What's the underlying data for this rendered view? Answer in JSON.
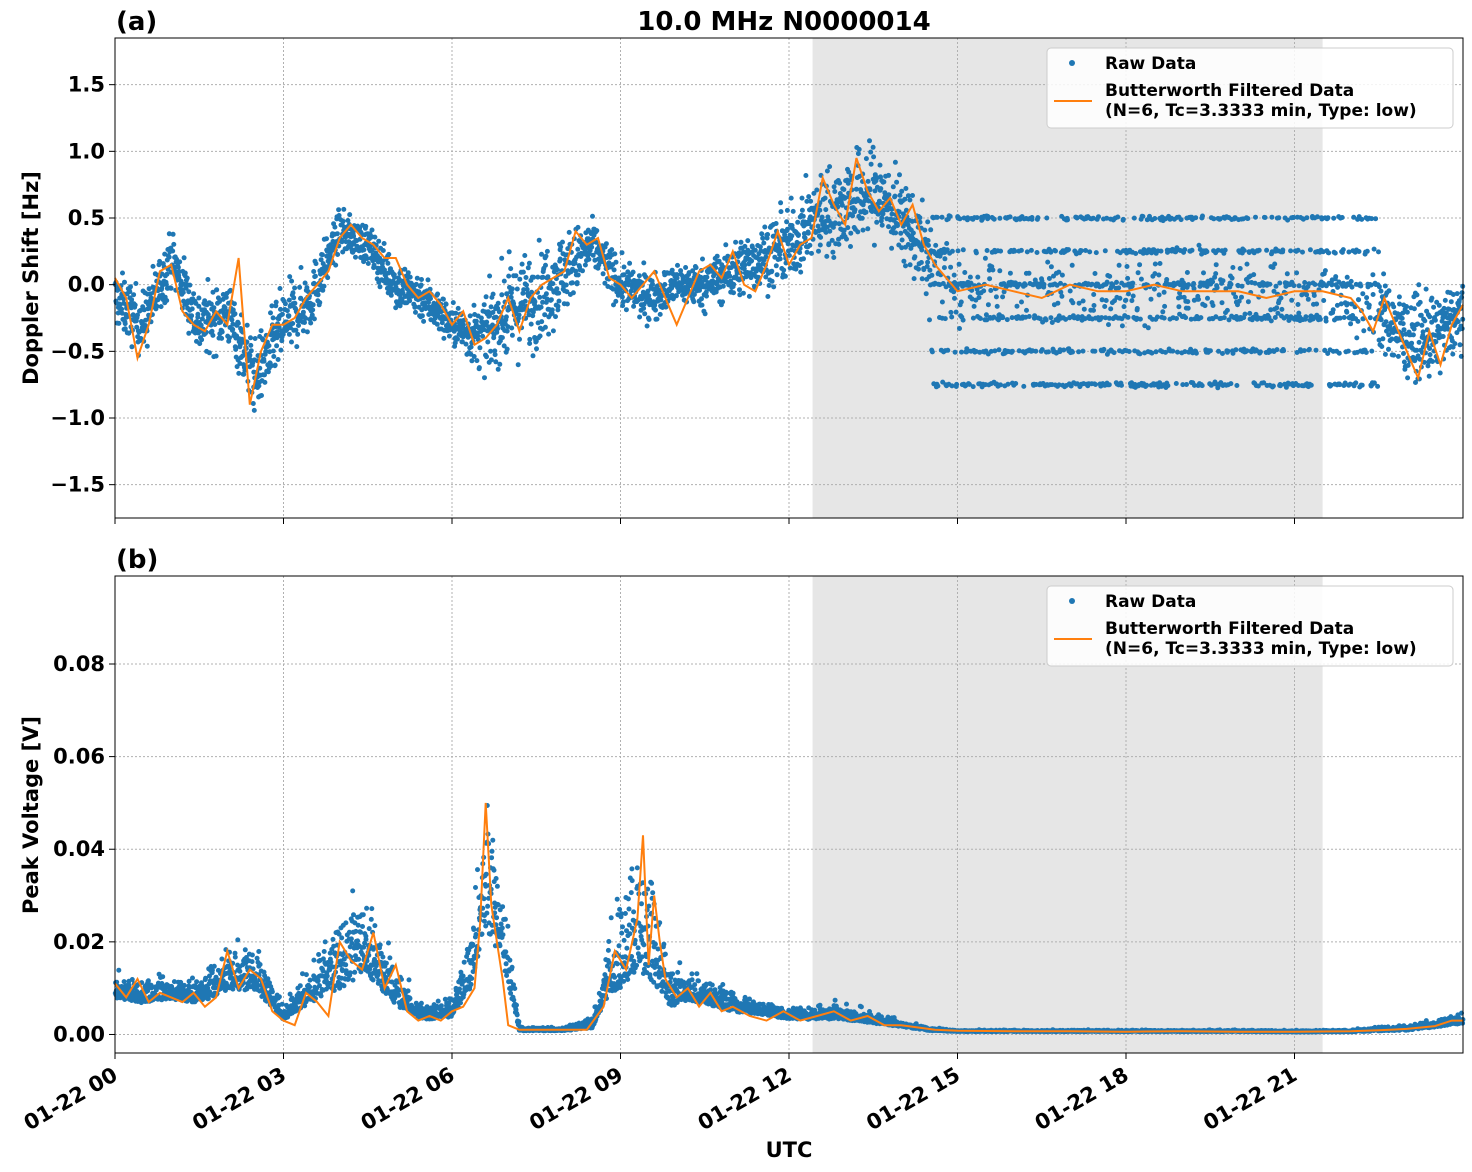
{
  "figure": {
    "title": "10.0 MHz N0000014",
    "xlabel": "UTC"
  },
  "colors": {
    "raw": "#1f77b4",
    "filtered": "#ff7f0e",
    "shade": "#e6e6e6",
    "grid": "#b0b0b0"
  },
  "chart_data": [
    {
      "type": "scatter",
      "panel_label": "(a)",
      "title": "10.0 MHz N0000014",
      "xlabel": "",
      "ylabel": "Doppler Shift [Hz]",
      "xlim_hours": [
        0,
        24
      ],
      "ylim": [
        -1.75,
        1.85
      ],
      "yticks": [
        -1.5,
        -1.0,
        -0.5,
        0.0,
        0.5,
        1.0,
        1.5
      ],
      "ytick_labels": [
        "−1.5",
        "−1.0",
        "−0.5",
        "0.0",
        "0.5",
        "1.0",
        "1.5"
      ],
      "grid": true,
      "legend_position": "top-right",
      "legend": [
        "Raw Data",
        "Butterworth Filtered Data",
        "(N=6, Tc=3.3333 min, Type: low)"
      ],
      "shaded_span_hours": [
        12.42,
        21.5
      ],
      "series": [
        {
          "name": "Raw Data",
          "kind": "points",
          "x_hours": [
            0.0,
            0.5,
            1.0,
            1.5,
            2.0,
            2.5,
            3.0,
            3.5,
            4.0,
            4.5,
            5.0,
            5.5,
            6.0,
            6.5,
            7.0,
            7.5,
            8.0,
            8.5,
            9.0,
            9.5,
            10.0,
            10.5,
            11.0,
            11.5,
            12.0,
            12.5,
            13.0,
            13.5,
            14.0,
            14.5,
            15.0,
            15.5,
            16.0,
            16.5,
            17.0,
            17.5,
            18.0,
            18.5,
            19.0,
            19.5,
            20.0,
            20.5,
            21.0,
            21.5,
            22.0,
            22.5,
            23.0,
            23.5,
            24.0
          ],
          "center": [
            -0.1,
            -0.3,
            0.2,
            -0.3,
            -0.2,
            -0.7,
            -0.3,
            -0.1,
            0.4,
            0.3,
            0.0,
            -0.1,
            -0.3,
            -0.4,
            -0.2,
            -0.1,
            0.1,
            0.3,
            0.0,
            -0.1,
            0.0,
            0.0,
            0.1,
            0.2,
            0.3,
            0.5,
            0.6,
            0.7,
            0.5,
            0.2,
            -0.05,
            -0.05,
            -0.05,
            -0.05,
            -0.05,
            -0.05,
            -0.05,
            -0.05,
            -0.05,
            -0.05,
            -0.05,
            -0.05,
            -0.05,
            -0.1,
            -0.15,
            -0.2,
            -0.4,
            -0.4,
            -0.2
          ],
          "spread": [
            0.35,
            0.4,
            0.35,
            0.4,
            0.4,
            0.45,
            0.45,
            0.4,
            0.25,
            0.25,
            0.3,
            0.3,
            0.25,
            0.4,
            0.6,
            0.6,
            0.5,
            0.3,
            0.3,
            0.3,
            0.25,
            0.3,
            0.35,
            0.4,
            0.45,
            0.5,
            0.6,
            0.6,
            0.5,
            0.5,
            0.4,
            0.4,
            0.4,
            0.4,
            0.4,
            0.4,
            0.4,
            0.4,
            0.4,
            0.4,
            0.4,
            0.4,
            0.4,
            0.45,
            0.45,
            0.45,
            0.5,
            0.5,
            0.4
          ],
          "bands": [
            -0.75,
            -0.5,
            -0.25,
            0.0,
            0.25,
            0.5
          ],
          "bands_span_hours": [
            14.5,
            22.5
          ]
        },
        {
          "name": "Butterworth Filtered Data",
          "kind": "line",
          "x_hours": [
            0.0,
            0.2,
            0.4,
            0.6,
            0.8,
            1.0,
            1.2,
            1.4,
            1.6,
            1.8,
            2.0,
            2.2,
            2.4,
            2.6,
            2.8,
            3.0,
            3.2,
            3.4,
            3.6,
            3.8,
            4.0,
            4.2,
            4.4,
            4.6,
            4.8,
            5.0,
            5.2,
            5.4,
            5.6,
            5.8,
            6.0,
            6.2,
            6.4,
            6.6,
            6.8,
            7.0,
            7.2,
            7.4,
            7.6,
            7.8,
            8.0,
            8.2,
            8.4,
            8.6,
            8.8,
            9.0,
            9.2,
            9.4,
            9.6,
            9.8,
            10.0,
            10.2,
            10.4,
            10.6,
            10.8,
            11.0,
            11.2,
            11.4,
            11.6,
            11.8,
            12.0,
            12.2,
            12.4,
            12.6,
            12.8,
            13.0,
            13.2,
            13.4,
            13.6,
            13.8,
            14.0,
            14.2,
            14.4,
            14.6,
            14.8,
            15.0,
            15.5,
            16.0,
            16.5,
            17.0,
            17.5,
            18.0,
            18.5,
            19.0,
            19.5,
            20.0,
            20.5,
            21.0,
            21.5,
            22.0,
            22.2,
            22.4,
            22.6,
            22.8,
            23.0,
            23.2,
            23.4,
            23.6,
            23.8,
            24.0
          ],
          "y": [
            0.05,
            -0.1,
            -0.55,
            -0.3,
            0.1,
            0.15,
            -0.2,
            -0.3,
            -0.35,
            -0.2,
            -0.3,
            0.2,
            -0.9,
            -0.5,
            -0.3,
            -0.3,
            -0.25,
            -0.1,
            0.0,
            0.1,
            0.35,
            0.45,
            0.35,
            0.3,
            0.2,
            0.2,
            0.0,
            -0.1,
            -0.05,
            -0.15,
            -0.3,
            -0.2,
            -0.45,
            -0.4,
            -0.3,
            -0.1,
            -0.35,
            -0.1,
            0.0,
            0.05,
            0.1,
            0.4,
            0.3,
            0.35,
            0.05,
            0.0,
            -0.1,
            0.0,
            0.1,
            -0.1,
            -0.3,
            -0.1,
            0.1,
            0.15,
            0.05,
            0.25,
            0.0,
            -0.05,
            0.15,
            0.4,
            0.15,
            0.3,
            0.35,
            0.8,
            0.6,
            0.45,
            0.95,
            0.7,
            0.55,
            0.65,
            0.45,
            0.6,
            0.3,
            0.15,
            0.05,
            -0.05,
            0.0,
            -0.05,
            -0.1,
            0.0,
            -0.05,
            -0.05,
            0.0,
            -0.05,
            -0.05,
            -0.05,
            -0.1,
            -0.05,
            -0.05,
            -0.1,
            -0.2,
            -0.35,
            -0.1,
            -0.3,
            -0.5,
            -0.7,
            -0.35,
            -0.6,
            -0.3,
            -0.15
          ]
        }
      ]
    },
    {
      "type": "scatter",
      "panel_label": "(b)",
      "xlabel": "UTC",
      "ylabel": "Peak Voltage [V]",
      "xlim_hours": [
        0,
        24
      ],
      "ylim": [
        -0.004,
        0.099
      ],
      "yticks": [
        0.0,
        0.02,
        0.04,
        0.06,
        0.08
      ],
      "ytick_labels": [
        "0.00",
        "0.02",
        "0.04",
        "0.06",
        "0.08"
      ],
      "xticks_hours": [
        0,
        3,
        6,
        9,
        12,
        15,
        18,
        21
      ],
      "xtick_labels": [
        "01-22 00",
        "01-22 03",
        "01-22 06",
        "01-22 09",
        "01-22 12",
        "01-22 15",
        "01-22 18",
        "01-22 21"
      ],
      "grid": true,
      "legend_position": "top-right",
      "legend": [
        "Raw Data",
        "Butterworth Filtered Data",
        "(N=6, Tc=3.3333 min, Type: low)"
      ],
      "shaded_span_hours": [
        12.42,
        21.5
      ],
      "series": [
        {
          "name": "Raw Data",
          "kind": "points",
          "x_hours": [
            0.0,
            0.5,
            1.0,
            1.5,
            2.0,
            2.5,
            3.0,
            3.5,
            4.0,
            4.5,
            5.0,
            5.5,
            6.0,
            6.3,
            6.6,
            6.9,
            7.2,
            7.5,
            8.0,
            8.5,
            8.8,
            9.0,
            9.3,
            9.6,
            9.9,
            10.2,
            10.5,
            11.0,
            11.5,
            12.0,
            12.5,
            13.0,
            13.5,
            14.0,
            14.5,
            15.0,
            16.0,
            17.0,
            18.0,
            19.0,
            20.0,
            21.0,
            22.0,
            23.0,
            23.5,
            24.0
          ],
          "center": [
            0.009,
            0.008,
            0.009,
            0.008,
            0.012,
            0.012,
            0.004,
            0.009,
            0.014,
            0.018,
            0.008,
            0.004,
            0.005,
            0.012,
            0.03,
            0.02,
            0.001,
            0.001,
            0.001,
            0.002,
            0.012,
            0.015,
            0.02,
            0.018,
            0.008,
            0.009,
            0.008,
            0.006,
            0.005,
            0.004,
            0.004,
            0.004,
            0.003,
            0.002,
            0.001,
            0.0007,
            0.0007,
            0.0007,
            0.0007,
            0.0007,
            0.0007,
            0.0006,
            0.0007,
            0.0012,
            0.002,
            0.003
          ],
          "spread": [
            0.006,
            0.006,
            0.007,
            0.006,
            0.012,
            0.012,
            0.004,
            0.01,
            0.02,
            0.025,
            0.01,
            0.004,
            0.006,
            0.015,
            0.035,
            0.02,
            0.001,
            0.001,
            0.001,
            0.003,
            0.015,
            0.025,
            0.03,
            0.035,
            0.01,
            0.008,
            0.007,
            0.005,
            0.004,
            0.003,
            0.004,
            0.004,
            0.003,
            0.0015,
            0.0008,
            0.0004,
            0.0004,
            0.0004,
            0.0004,
            0.0004,
            0.0004,
            0.0004,
            0.0006,
            0.0015,
            0.002,
            0.003
          ]
        },
        {
          "name": "Butterworth Filtered Data",
          "kind": "line",
          "x_hours": [
            0.0,
            0.2,
            0.4,
            0.6,
            0.8,
            1.0,
            1.2,
            1.4,
            1.6,
            1.8,
            2.0,
            2.2,
            2.4,
            2.6,
            2.8,
            3.0,
            3.2,
            3.4,
            3.6,
            3.8,
            4.0,
            4.2,
            4.4,
            4.6,
            4.8,
            5.0,
            5.2,
            5.4,
            5.6,
            5.8,
            6.0,
            6.2,
            6.4,
            6.5,
            6.6,
            6.7,
            6.8,
            6.9,
            7.0,
            7.2,
            7.6,
            8.0,
            8.4,
            8.7,
            8.9,
            9.1,
            9.3,
            9.4,
            9.5,
            9.6,
            9.7,
            9.8,
            10.0,
            10.2,
            10.4,
            10.6,
            10.8,
            11.0,
            11.3,
            11.6,
            11.9,
            12.2,
            12.5,
            12.8,
            13.1,
            13.4,
            13.7,
            14.0,
            14.3,
            14.6,
            15.0,
            16.0,
            17.0,
            18.0,
            19.0,
            20.0,
            21.0,
            22.0,
            22.5,
            23.0,
            23.5,
            23.8,
            24.0
          ],
          "y": [
            0.011,
            0.008,
            0.012,
            0.007,
            0.009,
            0.008,
            0.007,
            0.009,
            0.006,
            0.008,
            0.018,
            0.01,
            0.014,
            0.012,
            0.005,
            0.003,
            0.002,
            0.009,
            0.007,
            0.004,
            0.02,
            0.016,
            0.014,
            0.022,
            0.01,
            0.015,
            0.005,
            0.003,
            0.004,
            0.003,
            0.005,
            0.006,
            0.01,
            0.024,
            0.05,
            0.028,
            0.02,
            0.012,
            0.002,
            0.001,
            0.001,
            0.001,
            0.001,
            0.006,
            0.018,
            0.014,
            0.025,
            0.043,
            0.015,
            0.03,
            0.02,
            0.012,
            0.008,
            0.01,
            0.006,
            0.009,
            0.005,
            0.006,
            0.004,
            0.003,
            0.005,
            0.003,
            0.004,
            0.005,
            0.003,
            0.004,
            0.002,
            0.002,
            0.0015,
            0.001,
            0.0008,
            0.0007,
            0.0007,
            0.0006,
            0.0007,
            0.0006,
            0.0006,
            0.0007,
            0.0009,
            0.0012,
            0.0018,
            0.003,
            0.003
          ]
        }
      ]
    }
  ]
}
